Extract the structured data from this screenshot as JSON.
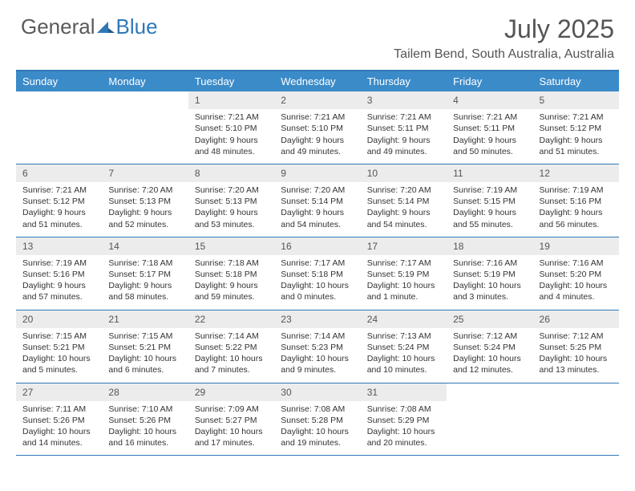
{
  "logo": {
    "general": "General",
    "blue": "Blue"
  },
  "title": "July 2025",
  "location": "Tailem Bend, South Australia, Australia",
  "colors": {
    "header_bg": "#3b8bc9",
    "accent": "#2f78b8",
    "daynum_bg": "#ececec",
    "text": "#333333",
    "title_text": "#555555"
  },
  "day_headers": [
    "Sunday",
    "Monday",
    "Tuesday",
    "Wednesday",
    "Thursday",
    "Friday",
    "Saturday"
  ],
  "weeks": [
    {
      "nums": [
        "",
        "",
        "1",
        "2",
        "3",
        "4",
        "5"
      ],
      "cells": [
        null,
        null,
        {
          "sunrise": "Sunrise: 7:21 AM",
          "sunset": "Sunset: 5:10 PM",
          "daylight1": "Daylight: 9 hours",
          "daylight2": "and 48 minutes."
        },
        {
          "sunrise": "Sunrise: 7:21 AM",
          "sunset": "Sunset: 5:10 PM",
          "daylight1": "Daylight: 9 hours",
          "daylight2": "and 49 minutes."
        },
        {
          "sunrise": "Sunrise: 7:21 AM",
          "sunset": "Sunset: 5:11 PM",
          "daylight1": "Daylight: 9 hours",
          "daylight2": "and 49 minutes."
        },
        {
          "sunrise": "Sunrise: 7:21 AM",
          "sunset": "Sunset: 5:11 PM",
          "daylight1": "Daylight: 9 hours",
          "daylight2": "and 50 minutes."
        },
        {
          "sunrise": "Sunrise: 7:21 AM",
          "sunset": "Sunset: 5:12 PM",
          "daylight1": "Daylight: 9 hours",
          "daylight2": "and 51 minutes."
        }
      ]
    },
    {
      "nums": [
        "6",
        "7",
        "8",
        "9",
        "10",
        "11",
        "12"
      ],
      "cells": [
        {
          "sunrise": "Sunrise: 7:21 AM",
          "sunset": "Sunset: 5:12 PM",
          "daylight1": "Daylight: 9 hours",
          "daylight2": "and 51 minutes."
        },
        {
          "sunrise": "Sunrise: 7:20 AM",
          "sunset": "Sunset: 5:13 PM",
          "daylight1": "Daylight: 9 hours",
          "daylight2": "and 52 minutes."
        },
        {
          "sunrise": "Sunrise: 7:20 AM",
          "sunset": "Sunset: 5:13 PM",
          "daylight1": "Daylight: 9 hours",
          "daylight2": "and 53 minutes."
        },
        {
          "sunrise": "Sunrise: 7:20 AM",
          "sunset": "Sunset: 5:14 PM",
          "daylight1": "Daylight: 9 hours",
          "daylight2": "and 54 minutes."
        },
        {
          "sunrise": "Sunrise: 7:20 AM",
          "sunset": "Sunset: 5:14 PM",
          "daylight1": "Daylight: 9 hours",
          "daylight2": "and 54 minutes."
        },
        {
          "sunrise": "Sunrise: 7:19 AM",
          "sunset": "Sunset: 5:15 PM",
          "daylight1": "Daylight: 9 hours",
          "daylight2": "and 55 minutes."
        },
        {
          "sunrise": "Sunrise: 7:19 AM",
          "sunset": "Sunset: 5:16 PM",
          "daylight1": "Daylight: 9 hours",
          "daylight2": "and 56 minutes."
        }
      ]
    },
    {
      "nums": [
        "13",
        "14",
        "15",
        "16",
        "17",
        "18",
        "19"
      ],
      "cells": [
        {
          "sunrise": "Sunrise: 7:19 AM",
          "sunset": "Sunset: 5:16 PM",
          "daylight1": "Daylight: 9 hours",
          "daylight2": "and 57 minutes."
        },
        {
          "sunrise": "Sunrise: 7:18 AM",
          "sunset": "Sunset: 5:17 PM",
          "daylight1": "Daylight: 9 hours",
          "daylight2": "and 58 minutes."
        },
        {
          "sunrise": "Sunrise: 7:18 AM",
          "sunset": "Sunset: 5:18 PM",
          "daylight1": "Daylight: 9 hours",
          "daylight2": "and 59 minutes."
        },
        {
          "sunrise": "Sunrise: 7:17 AM",
          "sunset": "Sunset: 5:18 PM",
          "daylight1": "Daylight: 10 hours",
          "daylight2": "and 0 minutes."
        },
        {
          "sunrise": "Sunrise: 7:17 AM",
          "sunset": "Sunset: 5:19 PM",
          "daylight1": "Daylight: 10 hours",
          "daylight2": "and 1 minute."
        },
        {
          "sunrise": "Sunrise: 7:16 AM",
          "sunset": "Sunset: 5:19 PM",
          "daylight1": "Daylight: 10 hours",
          "daylight2": "and 3 minutes."
        },
        {
          "sunrise": "Sunrise: 7:16 AM",
          "sunset": "Sunset: 5:20 PM",
          "daylight1": "Daylight: 10 hours",
          "daylight2": "and 4 minutes."
        }
      ]
    },
    {
      "nums": [
        "20",
        "21",
        "22",
        "23",
        "24",
        "25",
        "26"
      ],
      "cells": [
        {
          "sunrise": "Sunrise: 7:15 AM",
          "sunset": "Sunset: 5:21 PM",
          "daylight1": "Daylight: 10 hours",
          "daylight2": "and 5 minutes."
        },
        {
          "sunrise": "Sunrise: 7:15 AM",
          "sunset": "Sunset: 5:21 PM",
          "daylight1": "Daylight: 10 hours",
          "daylight2": "and 6 minutes."
        },
        {
          "sunrise": "Sunrise: 7:14 AM",
          "sunset": "Sunset: 5:22 PM",
          "daylight1": "Daylight: 10 hours",
          "daylight2": "and 7 minutes."
        },
        {
          "sunrise": "Sunrise: 7:14 AM",
          "sunset": "Sunset: 5:23 PM",
          "daylight1": "Daylight: 10 hours",
          "daylight2": "and 9 minutes."
        },
        {
          "sunrise": "Sunrise: 7:13 AM",
          "sunset": "Sunset: 5:24 PM",
          "daylight1": "Daylight: 10 hours",
          "daylight2": "and 10 minutes."
        },
        {
          "sunrise": "Sunrise: 7:12 AM",
          "sunset": "Sunset: 5:24 PM",
          "daylight1": "Daylight: 10 hours",
          "daylight2": "and 12 minutes."
        },
        {
          "sunrise": "Sunrise: 7:12 AM",
          "sunset": "Sunset: 5:25 PM",
          "daylight1": "Daylight: 10 hours",
          "daylight2": "and 13 minutes."
        }
      ]
    },
    {
      "nums": [
        "27",
        "28",
        "29",
        "30",
        "31",
        "",
        ""
      ],
      "cells": [
        {
          "sunrise": "Sunrise: 7:11 AM",
          "sunset": "Sunset: 5:26 PM",
          "daylight1": "Daylight: 10 hours",
          "daylight2": "and 14 minutes."
        },
        {
          "sunrise": "Sunrise: 7:10 AM",
          "sunset": "Sunset: 5:26 PM",
          "daylight1": "Daylight: 10 hours",
          "daylight2": "and 16 minutes."
        },
        {
          "sunrise": "Sunrise: 7:09 AM",
          "sunset": "Sunset: 5:27 PM",
          "daylight1": "Daylight: 10 hours",
          "daylight2": "and 17 minutes."
        },
        {
          "sunrise": "Sunrise: 7:08 AM",
          "sunset": "Sunset: 5:28 PM",
          "daylight1": "Daylight: 10 hours",
          "daylight2": "and 19 minutes."
        },
        {
          "sunrise": "Sunrise: 7:08 AM",
          "sunset": "Sunset: 5:29 PM",
          "daylight1": "Daylight: 10 hours",
          "daylight2": "and 20 minutes."
        },
        null,
        null
      ]
    }
  ]
}
